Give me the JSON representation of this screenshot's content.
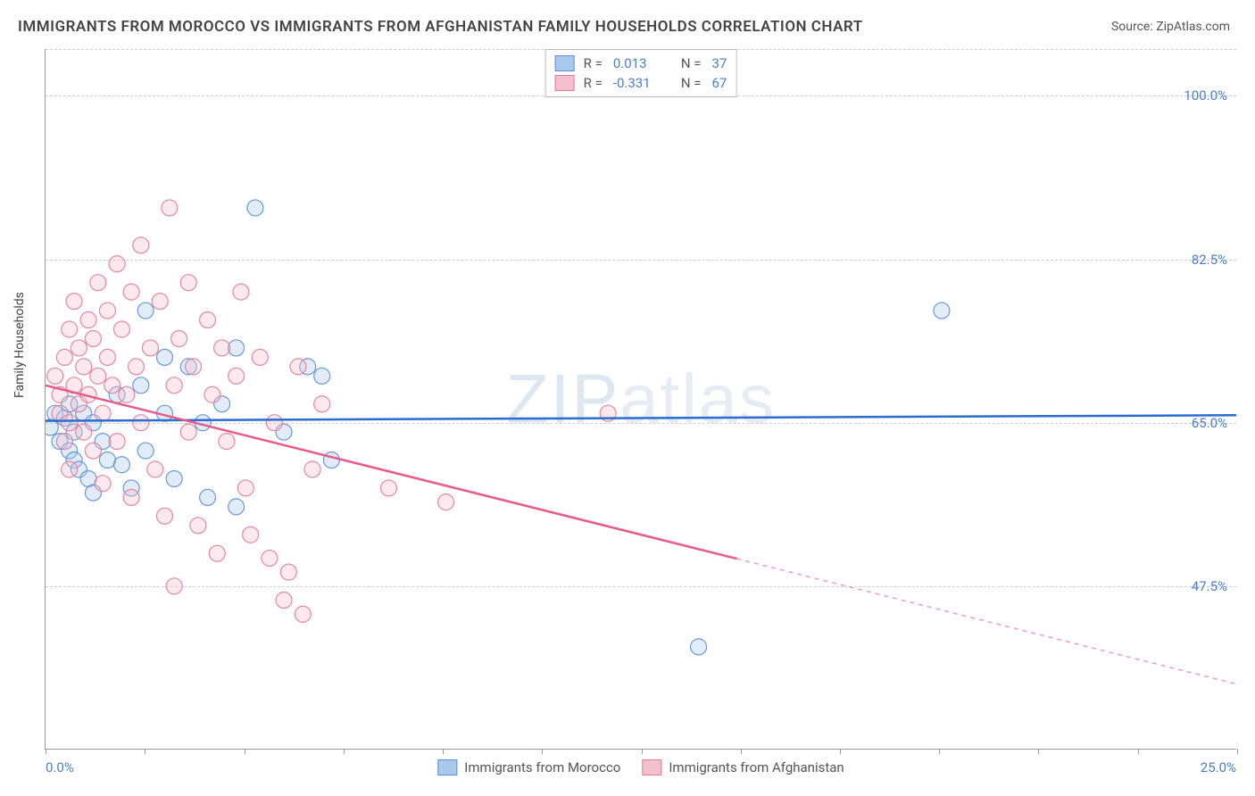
{
  "title": "IMMIGRANTS FROM MOROCCO VS IMMIGRANTS FROM AFGHANISTAN FAMILY HOUSEHOLDS CORRELATION CHART",
  "source_label": "Source: ZipAtlas.com",
  "watermark_main": "ZIP",
  "watermark_sub": "atlas",
  "y_axis_label": "Family Households",
  "chart": {
    "type": "scatter",
    "xlim": [
      0.0,
      25.0
    ],
    "ylim": [
      30.0,
      105.0
    ],
    "x_tick_positions": [
      0,
      2.08,
      4.17,
      6.25,
      8.33,
      10.42,
      12.5,
      14.58,
      16.67,
      18.75,
      20.83,
      22.92,
      25.0
    ],
    "y_gridlines": [
      47.5,
      65.0,
      82.5,
      100.0,
      105.0
    ],
    "y_tick_labels": [
      "47.5%",
      "65.0%",
      "82.5%",
      "100.0%"
    ],
    "x_min_label": "0.0%",
    "x_max_label": "25.0%",
    "background_color": "#ffffff",
    "grid_color": "#cccccc",
    "axis_color": "#999999",
    "tick_label_color": "#4a7ec9",
    "marker_radius": 9,
    "marker_opacity": 0.35,
    "series": [
      {
        "name": "Immigrants from Morocco",
        "color_fill": "#a8c8ec",
        "color_stroke": "#5b8fd1",
        "r": "0.013",
        "n": "37",
        "trend": {
          "color": "#2b6cd1",
          "width": 2.5,
          "y_at_xmin": 65.2,
          "y_at_xmax": 65.8,
          "solid_until_x": 25.0
        },
        "points": [
          [
            0.1,
            64.5
          ],
          [
            0.2,
            66.0
          ],
          [
            0.3,
            63.0
          ],
          [
            0.4,
            65.5
          ],
          [
            0.5,
            62.0
          ],
          [
            0.5,
            67.0
          ],
          [
            0.6,
            61.0
          ],
          [
            0.6,
            64.0
          ],
          [
            0.7,
            60.0
          ],
          [
            0.8,
            66.0
          ],
          [
            0.9,
            59.0
          ],
          [
            1.0,
            65.0
          ],
          [
            1.0,
            57.5
          ],
          [
            1.2,
            63.0
          ],
          [
            1.3,
            61.0
          ],
          [
            1.5,
            68.0
          ],
          [
            1.6,
            60.5
          ],
          [
            1.8,
            58.0
          ],
          [
            2.0,
            69.0
          ],
          [
            2.1,
            77.0
          ],
          [
            2.1,
            62.0
          ],
          [
            2.5,
            66.0
          ],
          [
            2.5,
            72.0
          ],
          [
            2.7,
            59.0
          ],
          [
            3.0,
            71.0
          ],
          [
            3.3,
            65.0
          ],
          [
            3.4,
            57.0
          ],
          [
            3.7,
            67.0
          ],
          [
            4.0,
            73.0
          ],
          [
            4.0,
            56.0
          ],
          [
            4.4,
            88.0
          ],
          [
            5.0,
            64.0
          ],
          [
            5.5,
            71.0
          ],
          [
            5.8,
            70.0
          ],
          [
            6.0,
            61.0
          ],
          [
            13.7,
            41.0
          ],
          [
            18.8,
            77.0
          ]
        ]
      },
      {
        "name": "Immigrants from Afghanistan",
        "color_fill": "#f4c0cd",
        "color_stroke": "#e27b9a",
        "r": "-0.331",
        "n": "67",
        "trend": {
          "color": "#e85a87",
          "width": 2.5,
          "y_at_xmin": 69.0,
          "y_at_xmax": 37.0,
          "solid_until_x": 14.5
        },
        "points": [
          [
            0.2,
            70.0
          ],
          [
            0.3,
            68.0
          ],
          [
            0.3,
            66.0
          ],
          [
            0.4,
            72.0
          ],
          [
            0.4,
            63.0
          ],
          [
            0.5,
            75.0
          ],
          [
            0.5,
            65.0
          ],
          [
            0.5,
            60.0
          ],
          [
            0.6,
            69.0
          ],
          [
            0.6,
            78.0
          ],
          [
            0.7,
            67.0
          ],
          [
            0.7,
            73.0
          ],
          [
            0.8,
            71.0
          ],
          [
            0.8,
            64.0
          ],
          [
            0.9,
            76.0
          ],
          [
            0.9,
            68.0
          ],
          [
            1.0,
            62.0
          ],
          [
            1.0,
            74.0
          ],
          [
            1.1,
            70.0
          ],
          [
            1.1,
            80.0
          ],
          [
            1.2,
            66.0
          ],
          [
            1.2,
            58.5
          ],
          [
            1.3,
            72.0
          ],
          [
            1.3,
            77.0
          ],
          [
            1.4,
            69.0
          ],
          [
            1.5,
            82.0
          ],
          [
            1.5,
            63.0
          ],
          [
            1.6,
            75.0
          ],
          [
            1.7,
            68.0
          ],
          [
            1.8,
            79.0
          ],
          [
            1.8,
            57.0
          ],
          [
            1.9,
            71.0
          ],
          [
            2.0,
            65.0
          ],
          [
            2.0,
            84.0
          ],
          [
            2.2,
            73.0
          ],
          [
            2.3,
            60.0
          ],
          [
            2.4,
            78.0
          ],
          [
            2.5,
            55.0
          ],
          [
            2.6,
            88.0
          ],
          [
            2.7,
            69.0
          ],
          [
            2.7,
            47.5
          ],
          [
            2.8,
            74.0
          ],
          [
            3.0,
            64.0
          ],
          [
            3.0,
            80.0
          ],
          [
            3.1,
            71.0
          ],
          [
            3.2,
            54.0
          ],
          [
            3.4,
            76.0
          ],
          [
            3.5,
            68.0
          ],
          [
            3.6,
            51.0
          ],
          [
            3.7,
            73.0
          ],
          [
            3.8,
            63.0
          ],
          [
            4.0,
            70.0
          ],
          [
            4.1,
            79.0
          ],
          [
            4.2,
            58.0
          ],
          [
            4.3,
            53.0
          ],
          [
            4.5,
            72.0
          ],
          [
            4.7,
            50.5
          ],
          [
            4.8,
            65.0
          ],
          [
            5.0,
            46.0
          ],
          [
            5.1,
            49.0
          ],
          [
            5.3,
            71.0
          ],
          [
            5.4,
            44.5
          ],
          [
            5.6,
            60.0
          ],
          [
            5.8,
            67.0
          ],
          [
            7.2,
            58.0
          ],
          [
            8.4,
            56.5
          ],
          [
            11.8,
            66.0
          ]
        ]
      }
    ]
  },
  "legend_top": {
    "r_label": "R =",
    "n_label": "N ="
  },
  "legend_bottom": {
    "series1": "Immigrants from Morocco",
    "series2": "Immigrants from Afghanistan"
  }
}
